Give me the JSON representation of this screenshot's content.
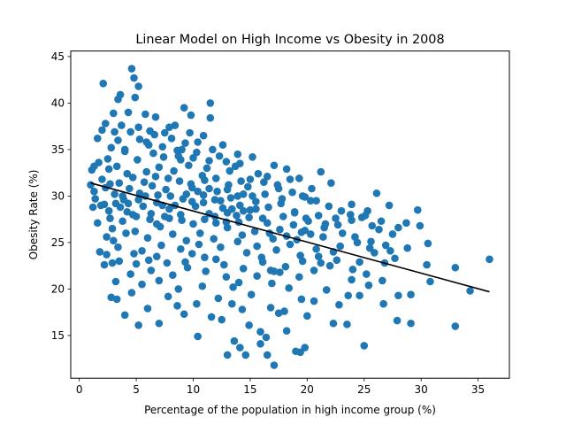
{
  "chart_data": {
    "type": "scatter",
    "title": "Linear Model on High Income vs Obesity in 2008",
    "xlabel": "Percentage of the population in high income group (%)",
    "ylabel": "Obesity Rate (%)",
    "xlim": [
      -0.75,
      37.75
    ],
    "ylim": [
      10.4,
      45.6
    ],
    "xticks": [
      0,
      5,
      10,
      15,
      20,
      25,
      30,
      35
    ],
    "yticks": [
      15,
      20,
      25,
      30,
      35,
      40,
      45
    ],
    "grid": false,
    "point_color": "#1f77b4",
    "line_color": "#000000",
    "fit_line": {
      "x": [
        1.0,
        36.0
      ],
      "y": [
        31.4,
        19.7
      ]
    },
    "scatter_points": [
      [
        4.6,
        43.7
      ],
      [
        4.8,
        42.7
      ],
      [
        2.1,
        42.1
      ],
      [
        5.2,
        41.8
      ],
      [
        3.6,
        40.9
      ],
      [
        3.4,
        40.4
      ],
      [
        4.9,
        40.6
      ],
      [
        11.5,
        40.0
      ],
      [
        9.2,
        39.5
      ],
      [
        4.3,
        39.0
      ],
      [
        3.0,
        38.9
      ],
      [
        5.8,
        38.8
      ],
      [
        9.8,
        38.7
      ],
      [
        6.7,
        38.5
      ],
      [
        11.5,
        38.4
      ],
      [
        2.3,
        37.8
      ],
      [
        3.7,
        37.6
      ],
      [
        5.2,
        37.4
      ],
      [
        7.9,
        37.4
      ],
      [
        2.0,
        37.1
      ],
      [
        4.5,
        36.9
      ],
      [
        6.2,
        37.0
      ],
      [
        7.5,
        36.8
      ],
      [
        10.9,
        36.5
      ],
      [
        1.6,
        36.2
      ],
      [
        3.4,
        36.0
      ],
      [
        5.9,
        35.8
      ],
      [
        9.3,
        35.7
      ],
      [
        12.6,
        35.5
      ],
      [
        2.8,
        35.2
      ],
      [
        4.0,
        35.0
      ],
      [
        8.6,
        34.9
      ],
      [
        10.3,
        34.7
      ],
      [
        13.9,
        34.5
      ],
      [
        15.2,
        34.2
      ],
      [
        11.4,
        33.8
      ],
      [
        17.1,
        33.3
      ],
      [
        1.3,
        33.2
      ],
      [
        13.7,
        33.2
      ],
      [
        18.2,
        32.9
      ],
      [
        21.2,
        32.6
      ],
      [
        15.7,
        32.4
      ],
      [
        16.5,
        32.1
      ],
      [
        19.3,
        31.9
      ],
      [
        22.1,
        31.4
      ],
      [
        1.0,
        31.2
      ],
      [
        14.8,
        31.0
      ],
      [
        20.4,
        30.8
      ],
      [
        26.1,
        30.3
      ],
      [
        19.6,
        30.0
      ],
      [
        17.8,
        29.7
      ],
      [
        20.3,
        29.5
      ],
      [
        23.9,
        29.1
      ],
      [
        27.2,
        29.0
      ],
      [
        1.2,
        28.8
      ],
      [
        15.5,
        28.6
      ],
      [
        25.3,
        28.4
      ],
      [
        18.9,
        28.2
      ],
      [
        23.8,
        28.0
      ],
      [
        29.7,
        28.5
      ],
      [
        24.8,
        27.7
      ],
      [
        26.5,
        27.3
      ],
      [
        21.6,
        27.0
      ],
      [
        25.7,
        26.8
      ],
      [
        28.0,
        26.6
      ],
      [
        29.9,
        26.8
      ],
      [
        19.8,
        26.3
      ],
      [
        23.1,
        26.0
      ],
      [
        21.4,
        25.6
      ],
      [
        26.9,
        24.7
      ],
      [
        24.4,
        25.0
      ],
      [
        30.6,
        24.9
      ],
      [
        28.8,
        24.4
      ],
      [
        25.5,
        24.4
      ],
      [
        22.3,
        24.0
      ],
      [
        21.0,
        23.5
      ],
      [
        27.7,
        23.3
      ],
      [
        36.0,
        23.2
      ],
      [
        19.6,
        23.0
      ],
      [
        24.6,
        22.9
      ],
      [
        26.8,
        22.8
      ],
      [
        22.0,
        22.5
      ],
      [
        20.6,
        22.0
      ],
      [
        30.5,
        22.6
      ],
      [
        33.0,
        22.3
      ],
      [
        16.8,
        22.0
      ],
      [
        25.2,
        21.6
      ],
      [
        19.3,
        21.3
      ],
      [
        23.9,
        21.0
      ],
      [
        26.6,
        20.9
      ],
      [
        30.8,
        20.8
      ],
      [
        25.4,
        20.4
      ],
      [
        18.4,
        20.1
      ],
      [
        21.7,
        19.9
      ],
      [
        34.3,
        19.8
      ],
      [
        28.0,
        19.3
      ],
      [
        29.1,
        19.4
      ],
      [
        23.6,
        19.3
      ],
      [
        24.6,
        19.3
      ],
      [
        19.5,
        18.9
      ],
      [
        20.6,
        18.7
      ],
      [
        22.8,
        18.3
      ],
      [
        26.7,
        18.4
      ],
      [
        16.8,
        18.0
      ],
      [
        18.0,
        17.6
      ],
      [
        17.5,
        17.4
      ],
      [
        20.0,
        17.1
      ],
      [
        27.9,
        16.6
      ],
      [
        29.1,
        16.3
      ],
      [
        23.5,
        16.2
      ],
      [
        22.3,
        16.3
      ],
      [
        33.0,
        16.0
      ],
      [
        14.9,
        16.1
      ],
      [
        15.9,
        15.4
      ],
      [
        18.2,
        15.5
      ],
      [
        16.4,
        14.8
      ],
      [
        13.6,
        14.4
      ],
      [
        10.4,
        14.9
      ],
      [
        15.9,
        14.1
      ],
      [
        14.1,
        13.7
      ],
      [
        19.8,
        13.7
      ],
      [
        25.0,
        13.9
      ],
      [
        19.0,
        13.3
      ],
      [
        19.4,
        13.2
      ],
      [
        16.5,
        12.9
      ],
      [
        13.0,
        12.9
      ],
      [
        14.6,
        12.9
      ],
      [
        17.1,
        11.8
      ],
      [
        2.2,
        22.6
      ],
      [
        2.9,
        22.8
      ],
      [
        3.5,
        23.0
      ],
      [
        5.0,
        22.7
      ],
      [
        1.8,
        24.0
      ],
      [
        3.2,
        20.8
      ],
      [
        4.6,
        19.6
      ],
      [
        2.8,
        19.1
      ],
      [
        3.3,
        18.9
      ],
      [
        4.0,
        17.2
      ],
      [
        5.2,
        16.1
      ],
      [
        6.0,
        17.9
      ],
      [
        7.0,
        16.3
      ],
      [
        7.8,
        19.2
      ],
      [
        8.6,
        18.2
      ],
      [
        9.2,
        17.3
      ],
      [
        10.3,
        18.4
      ],
      [
        11.6,
        17.0
      ],
      [
        12.5,
        16.7
      ],
      [
        13.4,
        18.4
      ],
      [
        14.3,
        17.8
      ],
      [
        15.1,
        19.4
      ],
      [
        10.8,
        20.3
      ],
      [
        12.2,
        19.0
      ],
      [
        13.5,
        20.2
      ],
      [
        7.0,
        20.9
      ],
      [
        6.3,
        22.0
      ],
      [
        8.2,
        21.5
      ],
      [
        9.5,
        22.3
      ],
      [
        11.1,
        21.9
      ],
      [
        12.9,
        21.3
      ],
      [
        14.0,
        20.7
      ],
      [
        15.6,
        21.4
      ],
      [
        16.9,
        20.6
      ],
      [
        17.6,
        21.8
      ],
      [
        5.5,
        20.5
      ],
      [
        8.7,
        20.0
      ],
      [
        4.5,
        21.6
      ],
      [
        6.8,
        23.5
      ],
      [
        9.9,
        23.8
      ],
      [
        12.0,
        23.2
      ],
      [
        14.7,
        23.9
      ],
      [
        16.0,
        23.4
      ],
      [
        17.3,
        24.2
      ],
      [
        18.5,
        24.8
      ],
      [
        3.4,
        24.5
      ],
      [
        2.4,
        25.6
      ],
      [
        1.6,
        27.1
      ],
      [
        2.6,
        28.4
      ],
      [
        3.1,
        30.2
      ],
      [
        1.4,
        29.7
      ],
      [
        2.0,
        31.8
      ],
      [
        1.7,
        33.6
      ],
      [
        1.1,
        32.8
      ],
      [
        2.5,
        34.0
      ],
      [
        3.3,
        33.2
      ],
      [
        4.2,
        32.4
      ],
      [
        5.1,
        33.9
      ],
      [
        6.5,
        34.6
      ],
      [
        7.3,
        35.3
      ],
      [
        8.1,
        36.2
      ],
      [
        9.0,
        35.0
      ],
      [
        10.0,
        34.1
      ],
      [
        11.2,
        33.0
      ],
      [
        12.3,
        34.3
      ],
      [
        13.2,
        32.7
      ],
      [
        14.1,
        33.5
      ],
      [
        15.0,
        31.8
      ],
      [
        16.2,
        31.5
      ],
      [
        17.5,
        30.8
      ],
      [
        18.7,
        30.4
      ],
      [
        19.8,
        29.9
      ],
      [
        20.8,
        29.5
      ],
      [
        21.9,
        28.9
      ],
      [
        23.0,
        28.4
      ],
      [
        22.5,
        27.6
      ],
      [
        21.0,
        27.9
      ],
      [
        20.1,
        27.3
      ],
      [
        18.8,
        26.9
      ],
      [
        17.6,
        26.4
      ],
      [
        16.5,
        27.1
      ],
      [
        15.4,
        26.2
      ],
      [
        14.3,
        25.8
      ],
      [
        13.0,
        26.6
      ],
      [
        11.8,
        25.4
      ],
      [
        10.6,
        26.0
      ],
      [
        9.4,
        25.2
      ],
      [
        8.2,
        25.9
      ],
      [
        7.1,
        26.7
      ],
      [
        6.0,
        25.5
      ],
      [
        4.9,
        26.2
      ],
      [
        3.8,
        27.3
      ],
      [
        2.9,
        26.5
      ],
      [
        2.2,
        29.1
      ],
      [
        3.9,
        29.6
      ],
      [
        5.3,
        30.3
      ],
      [
        6.4,
        31.1
      ],
      [
        7.6,
        30.7
      ],
      [
        8.8,
        31.6
      ],
      [
        9.9,
        30.9
      ],
      [
        11.0,
        31.7
      ],
      [
        12.1,
        30.5
      ],
      [
        13.3,
        29.8
      ],
      [
        14.4,
        30.2
      ],
      [
        15.5,
        29.4
      ],
      [
        16.6,
        28.8
      ],
      [
        17.7,
        29.2
      ],
      [
        18.9,
        28.3
      ],
      [
        19.9,
        27.6
      ],
      [
        4.2,
        28.3
      ],
      [
        5.6,
        28.9
      ],
      [
        6.8,
        29.3
      ],
      [
        7.9,
        28.6
      ],
      [
        9.1,
        29.7
      ],
      [
        10.2,
        28.9
      ],
      [
        11.4,
        28.1
      ],
      [
        12.6,
        28.7
      ],
      [
        13.8,
        27.9
      ],
      [
        15.0,
        28.5
      ],
      [
        16.1,
        27.6
      ],
      [
        3.5,
        31.4
      ],
      [
        4.7,
        32.0
      ],
      [
        5.9,
        32.6
      ],
      [
        7.0,
        33.1
      ],
      [
        8.3,
        32.7
      ],
      [
        9.6,
        33.3
      ],
      [
        10.8,
        32.2
      ],
      [
        12.0,
        31.9
      ],
      [
        13.1,
        31.2
      ],
      [
        14.2,
        31.6
      ],
      [
        2.6,
        32.9
      ],
      [
        6.1,
        35.5
      ],
      [
        7.4,
        34.2
      ],
      [
        8.9,
        33.9
      ],
      [
        10.4,
        35.8
      ],
      [
        11.7,
        35.0
      ],
      [
        12.9,
        33.7
      ],
      [
        4.0,
        34.8
      ],
      [
        5.3,
        36.1
      ],
      [
        6.6,
        36.6
      ],
      [
        3.1,
        36.9
      ],
      [
        8.4,
        37.6
      ],
      [
        9.7,
        36.8
      ],
      [
        5.5,
        24.1
      ],
      [
        7.2,
        24.7
      ],
      [
        8.9,
        24.3
      ],
      [
        10.5,
        24.8
      ],
      [
        12.4,
        24.5
      ],
      [
        13.9,
        25.1
      ],
      [
        15.6,
        24.6
      ],
      [
        17.0,
        25.4
      ],
      [
        18.2,
        25.7
      ],
      [
        19.5,
        26.1
      ],
      [
        4.8,
        23.8
      ],
      [
        6.1,
        23.1
      ],
      [
        7.7,
        22.8
      ],
      [
        9.3,
        22.9
      ],
      [
        11.0,
        23.4
      ],
      [
        12.7,
        22.6
      ],
      [
        14.4,
        22.2
      ],
      [
        16.1,
        22.9
      ],
      [
        6.9,
        30.1
      ],
      [
        8.0,
        30.0
      ],
      [
        9.0,
        27.4
      ],
      [
        10.0,
        27.0
      ],
      [
        11.0,
        27.5
      ],
      [
        12.0,
        27.1
      ],
      [
        13.0,
        28.2
      ],
      [
        14.0,
        27.2
      ],
      [
        7.5,
        27.8
      ],
      [
        6.2,
        27.5
      ],
      [
        5.0,
        27.8
      ],
      [
        4.1,
        26.0
      ],
      [
        3.0,
        25.2
      ],
      [
        2.4,
        23.7
      ],
      [
        2.7,
        27.6
      ],
      [
        3.6,
        28.8
      ],
      [
        4.4,
        30.8
      ],
      [
        5.7,
        31.5
      ],
      [
        6.7,
        32.1
      ],
      [
        7.8,
        31.9
      ],
      [
        8.7,
        34.3
      ],
      [
        9.8,
        31.3
      ],
      [
        10.9,
        30.1
      ],
      [
        11.9,
        29.6
      ],
      [
        13.0,
        30.7
      ],
      [
        14.1,
        29.0
      ],
      [
        15.2,
        30.0
      ],
      [
        16.3,
        30.2
      ],
      [
        17.4,
        31.2
      ],
      [
        18.5,
        31.8
      ],
      [
        16.7,
        26.0
      ],
      [
        17.9,
        27.8
      ],
      [
        19.1,
        25.3
      ],
      [
        20.3,
        25.9
      ],
      [
        21.5,
        26.6
      ],
      [
        22.7,
        26.9
      ],
      [
        23.9,
        27.4
      ],
      [
        25.1,
        27.9
      ],
      [
        26.3,
        26.4
      ],
      [
        27.5,
        25.9
      ],
      [
        28.7,
        27.1
      ],
      [
        24.2,
        25.6
      ],
      [
        25.6,
        25.1
      ],
      [
        22.9,
        24.6
      ],
      [
        20.8,
        24.3
      ],
      [
        19.4,
        23.6
      ],
      [
        18.1,
        22.4
      ],
      [
        17.1,
        21.9
      ],
      [
        21.2,
        22.8
      ],
      [
        22.6,
        23.1
      ],
      [
        24.0,
        22.1
      ],
      [
        25.9,
        23.9
      ],
      [
        27.3,
        24.1
      ],
      [
        1.3,
        30.5
      ],
      [
        1.9,
        29.0
      ],
      [
        2.3,
        30.9
      ],
      [
        2.7,
        31.3
      ],
      [
        3.2,
        29.2
      ],
      [
        3.8,
        30.0
      ],
      [
        4.3,
        29.2
      ],
      [
        4.7,
        28.0
      ],
      [
        5.2,
        29.6
      ],
      [
        5.8,
        30.0
      ],
      [
        6.3,
        28.1
      ],
      [
        6.8,
        27.0
      ],
      [
        7.3,
        29.0
      ],
      [
        7.9,
        27.6
      ],
      [
        8.4,
        29.0
      ],
      [
        8.9,
        28.0
      ],
      [
        9.4,
        30.2
      ],
      [
        9.9,
        29.4
      ],
      [
        10.4,
        30.5
      ],
      [
        10.9,
        29.3
      ],
      [
        11.4,
        30.8
      ],
      [
        11.9,
        27.8
      ],
      [
        12.4,
        29.5
      ],
      [
        12.9,
        27.2
      ],
      [
        13.4,
        28.6
      ],
      [
        13.9,
        30.0
      ],
      [
        14.4,
        28.4
      ],
      [
        14.9,
        27.7
      ]
    ]
  }
}
